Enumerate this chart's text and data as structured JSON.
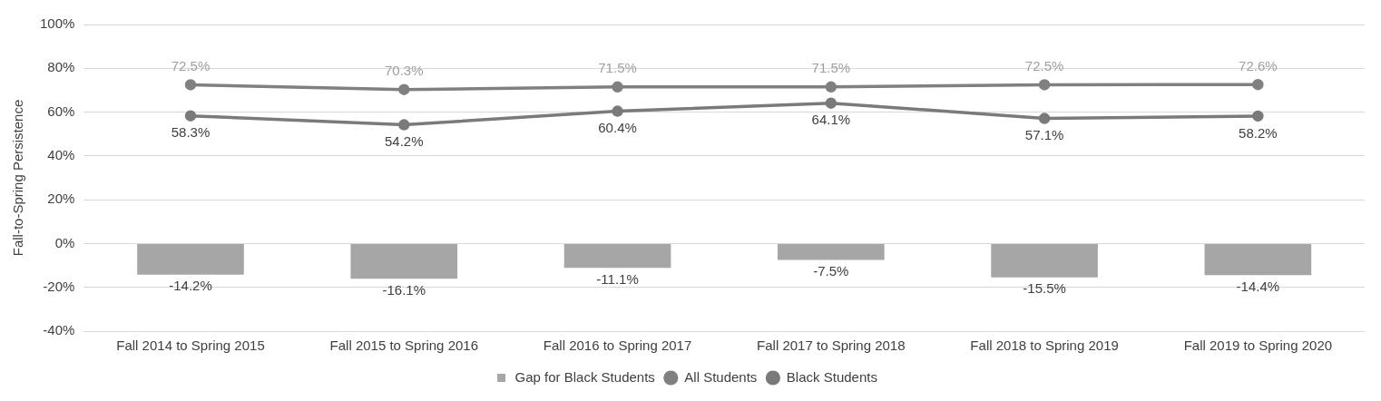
{
  "chart_data": {
    "type": "bar",
    "ylabel": "Fall-to-Spring Persistence",
    "categories": [
      "Fall 2014 to Spring 2015",
      "Fall 2015 to Spring 2016",
      "Fall 2016 to Spring 2017",
      "Fall 2017 to Spring 2018",
      "Fall 2018 to Spring 2019",
      "Fall 2019 to Spring 2020"
    ],
    "series": [
      {
        "name": "Gap for Black Students",
        "color": "#a6a6a6",
        "values": [
          -14.2,
          -16.1,
          -11.1,
          -7.5,
          -15.5,
          -14.4
        ],
        "value_labels": [
          "-14.2%",
          "-16.1%",
          "-11.1%",
          "-7.5%",
          "-15.5%",
          "-14.4%"
        ]
      },
      {
        "name": "All Students",
        "type": "line",
        "color": "#808080",
        "values": [
          72.5,
          70.3,
          71.5,
          71.5,
          72.5,
          72.6
        ],
        "value_labels": [
          "72.5%",
          "70.3%",
          "71.5%",
          "71.5%",
          "72.5%",
          "72.6%"
        ]
      },
      {
        "name": "Black Students",
        "type": "line",
        "color": "#7a7a7a",
        "values": [
          58.3,
          54.2,
          60.4,
          64.1,
          57.1,
          58.2
        ],
        "value_labels": [
          "58.3%",
          "54.2%",
          "60.4%",
          "64.1%",
          "57.1%",
          "58.2%"
        ]
      }
    ],
    "ylim": [
      -40,
      100
    ],
    "yticks": [
      {
        "value": -40,
        "label": "-40%"
      },
      {
        "value": -20,
        "label": "-20%"
      },
      {
        "value": 0,
        "label": "0%"
      },
      {
        "value": 20,
        "label": "20%"
      },
      {
        "value": 40,
        "label": "40%"
      },
      {
        "value": 60,
        "label": "60%"
      },
      {
        "value": 80,
        "label": "80%"
      },
      {
        "value": 100,
        "label": "100%"
      }
    ],
    "grid": "y",
    "legend": "bottom",
    "marker": "circle",
    "line_style": "solid"
  }
}
